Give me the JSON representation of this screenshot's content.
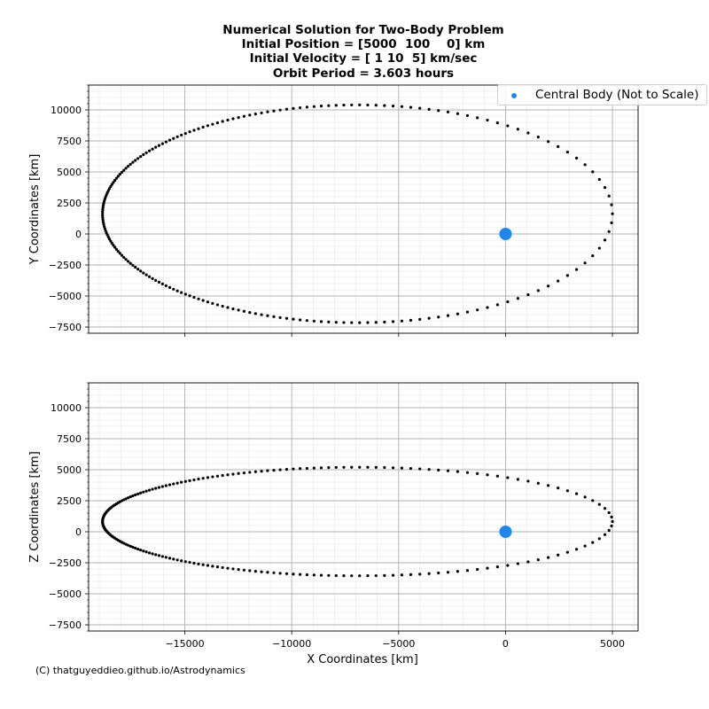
{
  "title_lines": [
    "Numerical Solution for Two-Body Problem",
    "Initial Position = [5000  100    0] km",
    "Initial Velocity = [ 1 10  5] km/sec",
    "Orbit Period = 3.603 hours"
  ],
  "legend": {
    "label": "Central Body (Not to Scale)",
    "location": "top-right"
  },
  "credit": "(C) thatguyeddieo.github.io/Astrodynamics",
  "colors": {
    "orbit": "#000000",
    "central_body": "#1e86f0",
    "grid": "#b0b0b0"
  },
  "chart_data": [
    {
      "type": "scatter",
      "xlabel": "",
      "ylabel": "Y Coordinates [km]",
      "xlim": [
        -19500,
        6200
      ],
      "ylim": [
        -8000,
        12000
      ],
      "xticks": [
        -15000,
        -10000,
        -5000,
        0,
        5000
      ],
      "xtick_labels": [
        "",
        "",
        "",
        "",
        ""
      ],
      "yticks": [
        -7500,
        -5000,
        -2500,
        0,
        2500,
        5000,
        7500,
        10000
      ],
      "ytick_labels": [
        "−7500",
        "−5000",
        "−2500",
        "0",
        "2500",
        "5000",
        "7500",
        "10000"
      ],
      "grid": true,
      "central_body": {
        "x": 0,
        "y": 0
      },
      "orbit": {
        "x_periapsis": 5000,
        "x_apoapsis": -18850,
        "y_max": 10400,
        "y_min": -7150,
        "points": 200
      }
    },
    {
      "type": "scatter",
      "xlabel": "X Coordinates [km]",
      "ylabel": "Z Coordinates [km]",
      "xlim": [
        -19500,
        6200
      ],
      "ylim": [
        -8000,
        12000
      ],
      "xticks": [
        -15000,
        -10000,
        -5000,
        0,
        5000
      ],
      "xtick_labels": [
        "−15000",
        "−10000",
        "−5000",
        "0",
        "5000"
      ],
      "yticks": [
        -7500,
        -5000,
        -2500,
        0,
        2500,
        5000,
        7500,
        10000
      ],
      "ytick_labels": [
        "−7500",
        "−5000",
        "−2500",
        "0",
        "2500",
        "5000",
        "7500",
        "10000"
      ],
      "grid": true,
      "central_body": {
        "x": 0,
        "y": 0
      },
      "orbit": {
        "x_periapsis": 5000,
        "x_apoapsis": -18850,
        "y_max": 5200,
        "y_min": -3550,
        "points": 200
      }
    }
  ]
}
